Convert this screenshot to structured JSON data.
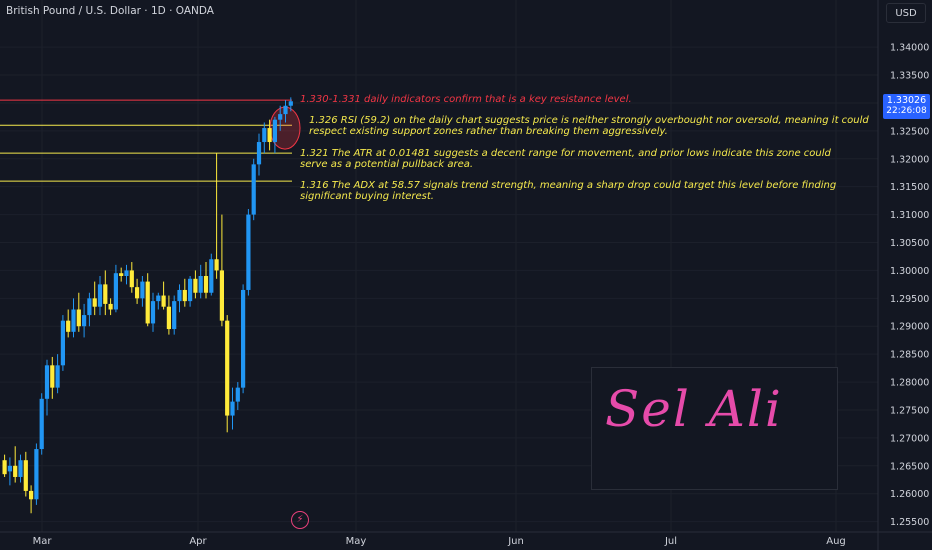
{
  "header": {
    "symbol_title": "British Pound / U.S. Dollar · 1D · OANDA",
    "currency_label": "USD"
  },
  "price_badge": {
    "price": "1.33026",
    "countdown": "22:26:08"
  },
  "annotations": [
    {
      "level": 1.3305,
      "color": "#f23645",
      "text": "1.330-1.331 daily indicators confirm that is a key resistance level."
    },
    {
      "level": 1.326,
      "color": "#f5e94d",
      "text": "1.326 RSI (59.2) on the daily chart suggests price is neither strongly overbought nor oversold, meaning it could respect existing support zones rather than breaking them aggressively."
    },
    {
      "level": 1.321,
      "color": "#f5e94d",
      "text": "1.321 The ATR at 0.01481 suggests a decent range for movement, and prior lows indicate this zone could serve as a potential pullback area."
    },
    {
      "level": 1.316,
      "color": "#f5e94d",
      "text": "1.316 The ADX at 58.57 signals trend strength, meaning a sharp drop could target this level before finding significant buying interest."
    }
  ],
  "signature": "Sel  Ali",
  "chart_data": {
    "type": "candlestick",
    "symbol": "GBPUSD",
    "interval": "1D",
    "y_range": [
      1.2535,
      1.3445
    ],
    "y_ticks": [
      "1.34000",
      "1.33500",
      "1.33000",
      "1.32500",
      "1.32000",
      "1.31500",
      "1.31000",
      "1.30500",
      "1.30000",
      "1.29500",
      "1.29000",
      "1.28500",
      "1.28000",
      "1.27500",
      "1.27000",
      "1.26500",
      "1.26000",
      "1.25500"
    ],
    "x_labels": [
      "Mar",
      "Apr",
      "May",
      "Jun",
      "Jul",
      "Aug"
    ],
    "colors": {
      "up": "#2196f3",
      "down": "#ffeb3b",
      "resistance": "#f23645",
      "support": "#f5e94d"
    },
    "candles": [
      {
        "o": 1.266,
        "h": 1.267,
        "l": 1.263,
        "c": 1.2635
      },
      {
        "o": 1.264,
        "h": 1.2665,
        "l": 1.2615,
        "c": 1.265
      },
      {
        "o": 1.265,
        "h": 1.2685,
        "l": 1.262,
        "c": 1.263
      },
      {
        "o": 1.263,
        "h": 1.267,
        "l": 1.262,
        "c": 1.266
      },
      {
        "o": 1.266,
        "h": 1.2675,
        "l": 1.2595,
        "c": 1.2605
      },
      {
        "o": 1.2605,
        "h": 1.2615,
        "l": 1.2565,
        "c": 1.259
      },
      {
        "o": 1.259,
        "h": 1.269,
        "l": 1.258,
        "c": 1.268
      },
      {
        "o": 1.268,
        "h": 1.278,
        "l": 1.267,
        "c": 1.277
      },
      {
        "o": 1.277,
        "h": 1.284,
        "l": 1.274,
        "c": 1.283
      },
      {
        "o": 1.283,
        "h": 1.2845,
        "l": 1.277,
        "c": 1.279
      },
      {
        "o": 1.279,
        "h": 1.285,
        "l": 1.278,
        "c": 1.283
      },
      {
        "o": 1.283,
        "h": 1.292,
        "l": 1.282,
        "c": 1.291
      },
      {
        "o": 1.291,
        "h": 1.293,
        "l": 1.288,
        "c": 1.289
      },
      {
        "o": 1.289,
        "h": 1.295,
        "l": 1.288,
        "c": 1.293
      },
      {
        "o": 1.293,
        "h": 1.296,
        "l": 1.289,
        "c": 1.29
      },
      {
        "o": 1.29,
        "h": 1.294,
        "l": 1.288,
        "c": 1.292
      },
      {
        "o": 1.292,
        "h": 1.296,
        "l": 1.29,
        "c": 1.295
      },
      {
        "o": 1.295,
        "h": 1.298,
        "l": 1.292,
        "c": 1.2935
      },
      {
        "o": 1.2935,
        "h": 1.299,
        "l": 1.292,
        "c": 1.2975
      },
      {
        "o": 1.2975,
        "h": 1.3,
        "l": 1.292,
        "c": 1.294
      },
      {
        "o": 1.294,
        "h": 1.295,
        "l": 1.292,
        "c": 1.293
      },
      {
        "o": 1.293,
        "h": 1.301,
        "l": 1.2925,
        "c": 1.2995
      },
      {
        "o": 1.2995,
        "h": 1.3005,
        "l": 1.298,
        "c": 1.299
      },
      {
        "o": 1.299,
        "h": 1.301,
        "l": 1.2975,
        "c": 1.3
      },
      {
        "o": 1.3,
        "h": 1.3015,
        "l": 1.296,
        "c": 1.297
      },
      {
        "o": 1.297,
        "h": 1.2985,
        "l": 1.294,
        "c": 1.295
      },
      {
        "o": 1.295,
        "h": 1.299,
        "l": 1.2935,
        "c": 1.298
      },
      {
        "o": 1.298,
        "h": 1.2995,
        "l": 1.29,
        "c": 1.2905
      },
      {
        "o": 1.2905,
        "h": 1.296,
        "l": 1.289,
        "c": 1.2945
      },
      {
        "o": 1.2945,
        "h": 1.296,
        "l": 1.293,
        "c": 1.2955
      },
      {
        "o": 1.2955,
        "h": 1.298,
        "l": 1.293,
        "c": 1.2935
      },
      {
        "o": 1.2935,
        "h": 1.2955,
        "l": 1.2885,
        "c": 1.2895
      },
      {
        "o": 1.2895,
        "h": 1.2955,
        "l": 1.2885,
        "c": 1.2945
      },
      {
        "o": 1.2945,
        "h": 1.2975,
        "l": 1.2925,
        "c": 1.2965
      },
      {
        "o": 1.2965,
        "h": 1.2985,
        "l": 1.2935,
        "c": 1.2945
      },
      {
        "o": 1.2945,
        "h": 1.299,
        "l": 1.2935,
        "c": 1.2985
      },
      {
        "o": 1.2985,
        "h": 1.3,
        "l": 1.295,
        "c": 1.296
      },
      {
        "o": 1.296,
        "h": 1.301,
        "l": 1.295,
        "c": 1.299
      },
      {
        "o": 1.299,
        "h": 1.3015,
        "l": 1.295,
        "c": 1.296
      },
      {
        "o": 1.296,
        "h": 1.303,
        "l": 1.2955,
        "c": 1.302
      },
      {
        "o": 1.302,
        "h": 1.321,
        "l": 1.2985,
        "c": 1.3
      },
      {
        "o": 1.3,
        "h": 1.31,
        "l": 1.29,
        "c": 1.291
      },
      {
        "o": 1.291,
        "h": 1.292,
        "l": 1.271,
        "c": 1.274
      },
      {
        "o": 1.274,
        "h": 1.279,
        "l": 1.2715,
        "c": 1.2765
      },
      {
        "o": 1.2765,
        "h": 1.28,
        "l": 1.275,
        "c": 1.279
      },
      {
        "o": 1.279,
        "h": 1.2975,
        "l": 1.278,
        "c": 1.2965
      },
      {
        "o": 1.2965,
        "h": 1.311,
        "l": 1.2955,
        "c": 1.31
      },
      {
        "o": 1.31,
        "h": 1.32,
        "l": 1.309,
        "c": 1.319
      },
      {
        "o": 1.319,
        "h": 1.3245,
        "l": 1.317,
        "c": 1.323
      },
      {
        "o": 1.323,
        "h": 1.3265,
        "l": 1.321,
        "c": 1.3255
      },
      {
        "o": 1.3255,
        "h": 1.327,
        "l": 1.3215,
        "c": 1.323
      },
      {
        "o": 1.323,
        "h": 1.3275,
        "l": 1.321,
        "c": 1.327
      },
      {
        "o": 1.327,
        "h": 1.3295,
        "l": 1.325,
        "c": 1.328
      },
      {
        "o": 1.328,
        "h": 1.3305,
        "l": 1.3265,
        "c": 1.3295
      },
      {
        "o": 1.3295,
        "h": 1.331,
        "l": 1.3285,
        "c": 1.3303
      }
    ]
  }
}
